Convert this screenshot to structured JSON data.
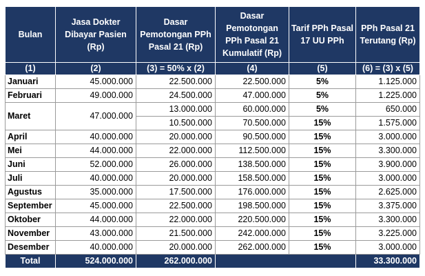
{
  "headers": [
    "Bulan",
    "Jasa Dokter Dibayar Pasien (Rp)",
    "Dasar Pemotongan PPh Pasal 21 (Rp)",
    "Dasar Pemotongan PPh Pasal 21 Kumulatif (Rp)",
    "Tarif PPh Pasal 17 UU PPh",
    "PPh Pasal 21 Terutang (Rp)"
  ],
  "index_row": [
    "(1)",
    "(2)",
    "(3) = 50% x (2)",
    "(4)",
    "(5)",
    "(6) = (3) x (5)"
  ],
  "rows": [
    {
      "month": "Januari",
      "jasa": "45.000.000",
      "dasar": "22.500.000",
      "kumulatif": "22.500.000",
      "tarif": "5%",
      "pph": "1.125.000"
    },
    {
      "month": "Februari",
      "jasa": "49.000.000",
      "dasar": "24.500.000",
      "kumulatif": "47.000.000",
      "tarif": "5%",
      "pph": "1.225.000"
    },
    {
      "month": "Maret",
      "jasa": "47.000.000",
      "dasar": "13.000.000",
      "kumulatif": "60.000.000",
      "tarif": "5%",
      "pph": "650.000"
    },
    {
      "month": "",
      "jasa": "",
      "dasar": "10.500.000",
      "kumulatif": "70.500.000",
      "tarif": "15%",
      "pph": "1.575.000"
    },
    {
      "month": "April",
      "jasa": "40.000.000",
      "dasar": "20.000.000",
      "kumulatif": "90.500.000",
      "tarif": "15%",
      "pph": "3.000.000"
    },
    {
      "month": "Mei",
      "jasa": "44.000.000",
      "dasar": "22.000.000",
      "kumulatif": "112.500.000",
      "tarif": "15%",
      "pph": "3.300.000"
    },
    {
      "month": "Juni",
      "jasa": "52.000.000",
      "dasar": "26.000.000",
      "kumulatif": "138.500.000",
      "tarif": "15%",
      "pph": "3.900.000"
    },
    {
      "month": "Juli",
      "jasa": "40.000.000",
      "dasar": "20.000.000",
      "kumulatif": "158.500.000",
      "tarif": "15%",
      "pph": "3.000.000"
    },
    {
      "month": "Agustus",
      "jasa": "35.000.000",
      "dasar": "17.500.000",
      "kumulatif": "176.000.000",
      "tarif": "15%",
      "pph": "2.625.000"
    },
    {
      "month": "September",
      "jasa": "45.000.000",
      "dasar": "22.500.000",
      "kumulatif": "198.500.000",
      "tarif": "15%",
      "pph": "3.375.000"
    },
    {
      "month": "Oktober",
      "jasa": "44.000.000",
      "dasar": "22.000.000",
      "kumulatif": "220.500.000",
      "tarif": "15%",
      "pph": "3.300.000"
    },
    {
      "month": "November",
      "jasa": "43.000.000",
      "dasar": "21.500.000",
      "kumulatif": "242.000.000",
      "tarif": "15%",
      "pph": "3.225.000"
    },
    {
      "month": "Desember",
      "jasa": "40.000.000",
      "dasar": "20.000.000",
      "kumulatif": "262.000.000",
      "tarif": "15%",
      "pph": "3.000.000"
    }
  ],
  "total": {
    "label": "Total",
    "jasa": "524.000.000",
    "dasar": "262.000.000",
    "kumulatif": "",
    "tarif": "",
    "pph": "33.300.000"
  },
  "colors": {
    "header_bg": "#1f3864",
    "header_text": "#ffffff",
    "grid": "#9a9a9a"
  }
}
